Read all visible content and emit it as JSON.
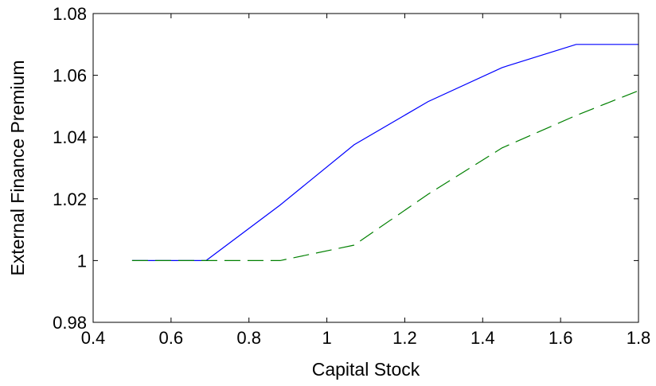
{
  "chart_data": {
    "type": "line",
    "title": "",
    "xlabel": "Capital Stock",
    "ylabel": "External Finance Premium",
    "xlim": [
      0.4,
      1.8
    ],
    "ylim": [
      0.98,
      1.08
    ],
    "xticks": [
      0.4,
      0.6,
      0.8,
      1,
      1.2,
      1.4,
      1.6,
      1.8
    ],
    "xtick_labels": [
      "0.4",
      "0.6",
      "0.8",
      "1",
      "1.2",
      "1.4",
      "1.6",
      "1.8"
    ],
    "yticks": [
      0.98,
      1,
      1.02,
      1.04,
      1.06,
      1.08
    ],
    "ytick_labels": [
      "0.98",
      "1",
      "1.02",
      "1.04",
      "1.06",
      "1.08"
    ],
    "grid": false,
    "legend": "none",
    "series": [
      {
        "color": "#0000ff",
        "style": "solid",
        "x": [
          0.5,
          0.69,
          0.88,
          1.07,
          1.26,
          1.45,
          1.64,
          1.8
        ],
        "y": [
          1.0,
          1.0,
          1.018,
          1.0375,
          1.0515,
          1.0625,
          1.07,
          1.07
        ]
      },
      {
        "color": "#008000",
        "style": "dashed",
        "x": [
          0.5,
          0.69,
          0.88,
          1.07,
          1.26,
          1.45,
          1.64,
          1.8
        ],
        "y": [
          1.0,
          1.0,
          1.0,
          1.005,
          1.0215,
          1.0365,
          1.047,
          1.055
        ]
      }
    ]
  }
}
